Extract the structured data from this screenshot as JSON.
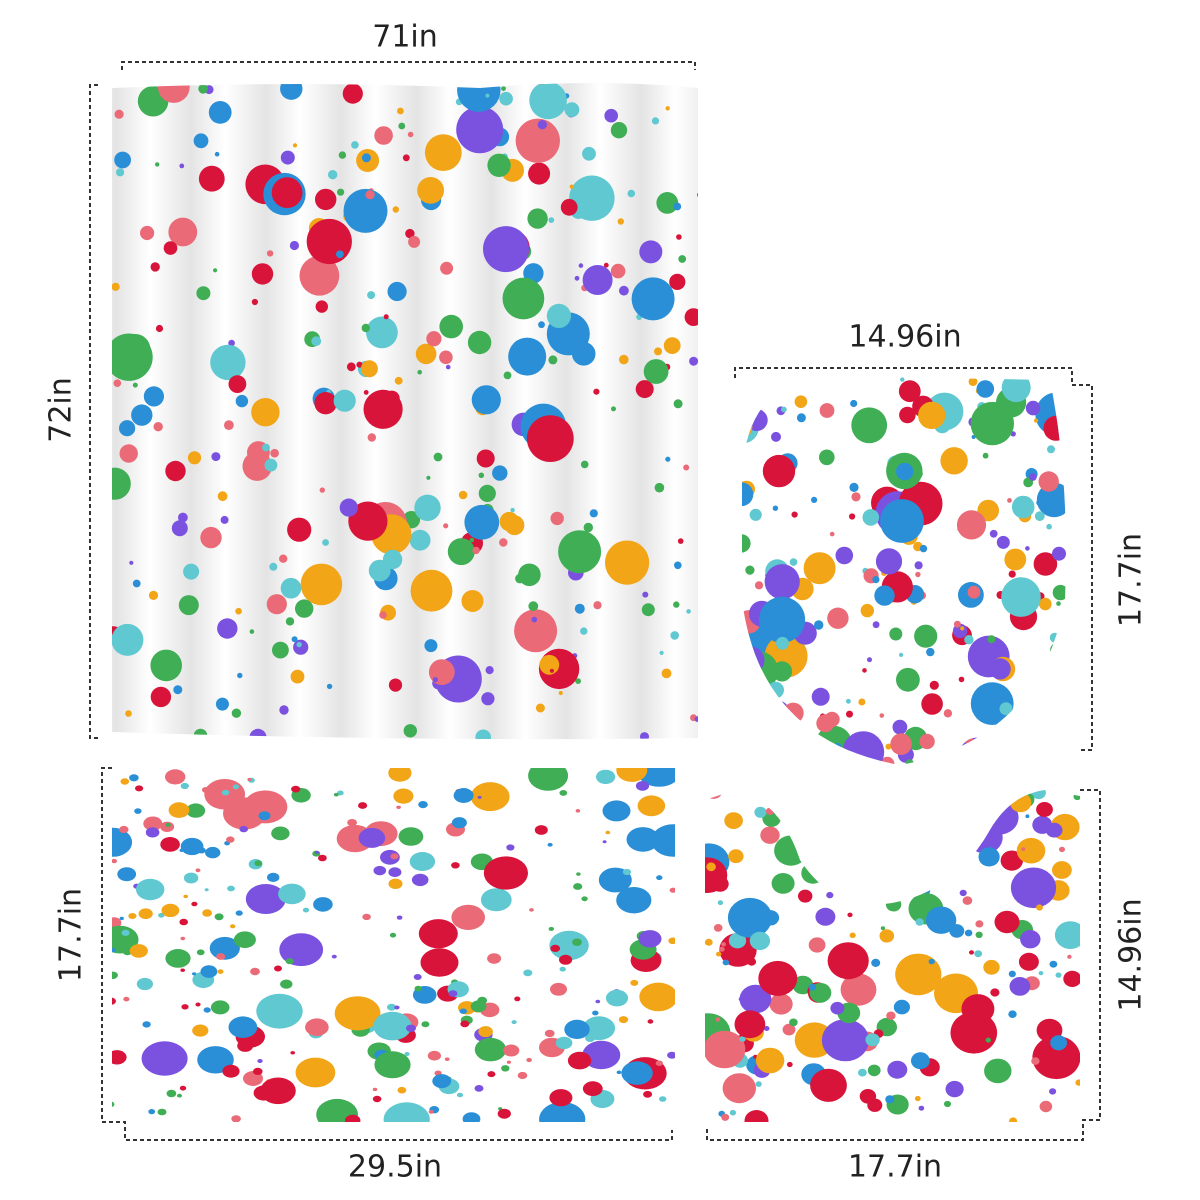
{
  "curtain": {
    "width": "71in",
    "height": "72in"
  },
  "lid_cover": {
    "width": "14.96in",
    "height": "17.7in"
  },
  "bath_mat": {
    "height": "17.7in",
    "width": "29.5in"
  },
  "contour_mat": {
    "width": "17.7in",
    "height": "14.96in"
  }
}
